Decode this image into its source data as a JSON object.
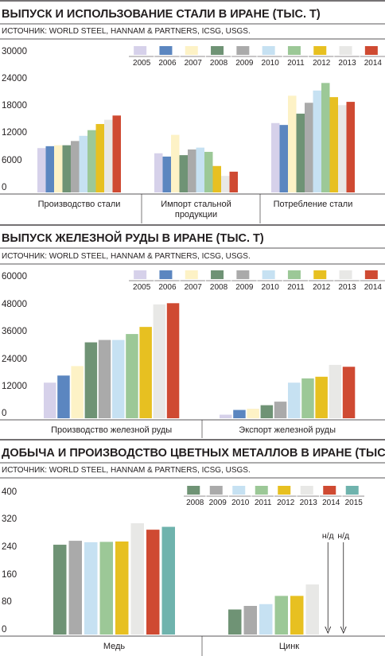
{
  "chart_data": [
    {
      "type": "bar",
      "title": "ВЫПУСК И ИСПОЛЬЗОВАНИЕ СТАЛИ В ИРАНЕ (ТЫС. Т)",
      "source": "ИСТОЧНИК: WORLD STEEL, HANNAM & PARTNERS, ICSG, USGS.",
      "yticks": [
        "30000",
        "24000",
        "18000",
        "12000",
        "6000",
        "0"
      ],
      "ylim": [
        0,
        30000
      ],
      "grid": false,
      "legend_position": "top-right",
      "categories": [
        [
          "Производство стали"
        ],
        [
          "Импорт стальной",
          "продукции"
        ],
        [
          "Потребление стали"
        ]
      ],
      "series": [
        {
          "name": "2005",
          "color": "#d6d1ea",
          "values": [
            9400,
            8300,
            14700
          ]
        },
        {
          "name": "2006",
          "color": "#5b86c0",
          "values": [
            9800,
            7600,
            14300
          ]
        },
        {
          "name": "2007",
          "color": "#fdf2c6",
          "values": [
            10000,
            12200,
            20500
          ]
        },
        {
          "name": "2008",
          "color": "#6f9375",
          "values": [
            10000,
            7900,
            16700
          ]
        },
        {
          "name": "2009",
          "color": "#aaaaaa",
          "values": [
            10900,
            9100,
            19000
          ]
        },
        {
          "name": "2010",
          "color": "#c6e1f2",
          "values": [
            12000,
            9500,
            21600
          ]
        },
        {
          "name": "2011",
          "color": "#9cc897",
          "values": [
            13200,
            8600,
            23200
          ]
        },
        {
          "name": "2012",
          "color": "#e7c021",
          "values": [
            14500,
            5600,
            20200
          ]
        },
        {
          "name": "2013",
          "color": "#e8e8e6",
          "values": [
            15400,
            3500,
            18500
          ]
        },
        {
          "name": "2014",
          "color": "#cf4a32",
          "values": [
            16300,
            4400,
            19200
          ]
        }
      ]
    },
    {
      "type": "bar",
      "title": "ВЫПУСК ЖЕЛЕЗНОЙ РУДЫ В ИРАНЕ (ТЫС. Т)",
      "source": "ИСТОЧНИК: WORLD STEEL, HANNAM & PARTNERS, ICSG, USGS.",
      "yticks": [
        "60000",
        "48000",
        "36000",
        "24000",
        "12000",
        "0"
      ],
      "ylim": [
        0,
        60000
      ],
      "grid": false,
      "legend_position": "top-right",
      "categories": [
        [
          "Производство железной руды"
        ],
        [
          "Экспорт железной руды"
        ]
      ],
      "series": [
        {
          "name": "2005",
          "color": "#d6d1ea",
          "values": [
            15000,
            1500
          ]
        },
        {
          "name": "2006",
          "color": "#5b86c0",
          "values": [
            18000,
            3500
          ]
        },
        {
          "name": "2007",
          "color": "#fdf2c6",
          "values": [
            22000,
            4000
          ]
        },
        {
          "name": "2008",
          "color": "#6f9375",
          "values": [
            32000,
            5500
          ]
        },
        {
          "name": "2009",
          "color": "#aaaaaa",
          "values": [
            33000,
            7000
          ]
        },
        {
          "name": "2010",
          "color": "#c6e1f2",
          "values": [
            33000,
            15000
          ]
        },
        {
          "name": "2011",
          "color": "#9cc897",
          "values": [
            35500,
            16800
          ]
        },
        {
          "name": "2012",
          "color": "#e7c021",
          "values": [
            38500,
            17500
          ]
        },
        {
          "name": "2013",
          "color": "#e8e8e6",
          "values": [
            48000,
            22500
          ]
        },
        {
          "name": "2014",
          "color": "#cf4a32",
          "values": [
            48500,
            21700
          ]
        }
      ]
    },
    {
      "type": "bar",
      "title": "ДОБЫЧА И ПРОИЗВОДСТВО ЦВЕТНЫХ МЕТАЛЛОВ В ИРАНЕ (ТЫС. Т)",
      "source": "ИСТОЧНИК: WORLD STEEL, HANNAM & PARTNERS, ICSG, USGS.",
      "yticks": [
        "400",
        "320",
        "240",
        "160",
        "80",
        "0"
      ],
      "ylim": [
        0,
        400
      ],
      "grid": false,
      "legend_position": "top-right",
      "categories": [
        [
          "Медь"
        ],
        [
          "Цинк"
        ]
      ],
      "na_label": "н/д",
      "series": [
        {
          "name": "2008",
          "color": "#6f9375",
          "values": [
            251,
            70
          ]
        },
        {
          "name": "2009",
          "color": "#aaaaaa",
          "values": [
            262,
            80
          ]
        },
        {
          "name": "2010",
          "color": "#c6e1f2",
          "values": [
            258,
            85
          ]
        },
        {
          "name": "2011",
          "color": "#9cc897",
          "values": [
            259,
            108
          ]
        },
        {
          "name": "2012",
          "color": "#e7c021",
          "values": [
            260,
            108
          ]
        },
        {
          "name": "2013",
          "color": "#e8e8e6",
          "values": [
            311,
            140
          ]
        },
        {
          "name": "2014",
          "color": "#cf4a32",
          "values": [
            293,
            null
          ]
        },
        {
          "name": "2015",
          "color": "#6fb3ad",
          "values": [
            301,
            null
          ]
        }
      ]
    }
  ]
}
